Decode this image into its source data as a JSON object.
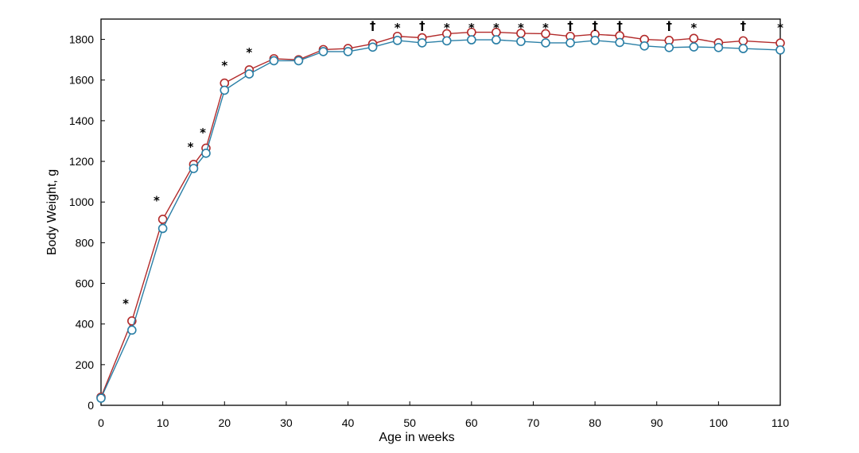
{
  "chart_data": {
    "type": "line",
    "title": "",
    "xlabel": "Age in weeks",
    "ylabel": "Body Weight, g",
    "xlim": [
      0,
      110
    ],
    "ylim": [
      0,
      1900
    ],
    "x_ticks": [
      0,
      10,
      20,
      30,
      40,
      50,
      60,
      70,
      80,
      90,
      100,
      110
    ],
    "y_ticks": [
      0,
      200,
      400,
      600,
      800,
      1000,
      1200,
      1400,
      1600,
      1800
    ],
    "grid": false,
    "x": [
      0,
      5,
      10,
      15,
      17,
      20,
      24,
      28,
      32,
      36,
      40,
      44,
      48,
      52,
      56,
      60,
      64,
      68,
      72,
      76,
      80,
      84,
      88,
      92,
      96,
      100,
      104,
      110
    ],
    "series": [
      {
        "color": "#b22a2a",
        "values": [
          40,
          415,
          915,
          1185,
          1265,
          1585,
          1650,
          1705,
          1700,
          1750,
          1755,
          1778,
          1815,
          1808,
          1828,
          1835,
          1835,
          1830,
          1828,
          1815,
          1825,
          1818,
          1800,
          1795,
          1805,
          1783,
          1793,
          1782
        ]
      },
      {
        "color": "#2a7fa6",
        "values": [
          35,
          370,
          870,
          1165,
          1240,
          1550,
          1630,
          1695,
          1695,
          1740,
          1740,
          1762,
          1795,
          1783,
          1793,
          1798,
          1798,
          1790,
          1783,
          1783,
          1795,
          1785,
          1768,
          1760,
          1763,
          1760,
          1755,
          1748
        ]
      }
    ],
    "annotations": [
      {
        "x": 4,
        "y": 505,
        "text": "*"
      },
      {
        "x": 9,
        "y": 1010,
        "text": "*"
      },
      {
        "x": 14.5,
        "y": 1275,
        "text": "*"
      },
      {
        "x": 16.5,
        "y": 1345,
        "text": "*"
      },
      {
        "x": 20,
        "y": 1675,
        "text": "*"
      },
      {
        "x": 24,
        "y": 1740,
        "text": "*"
      },
      {
        "x": 44,
        "y": 1870,
        "text": "†"
      },
      {
        "x": 48,
        "y": 1860,
        "text": "*"
      },
      {
        "x": 52,
        "y": 1870,
        "text": "†"
      },
      {
        "x": 56,
        "y": 1860,
        "text": "*"
      },
      {
        "x": 60,
        "y": 1860,
        "text": "*"
      },
      {
        "x": 64,
        "y": 1860,
        "text": "*"
      },
      {
        "x": 68,
        "y": 1860,
        "text": "*"
      },
      {
        "x": 72,
        "y": 1860,
        "text": "*"
      },
      {
        "x": 76,
        "y": 1870,
        "text": "†"
      },
      {
        "x": 80,
        "y": 1870,
        "text": "†"
      },
      {
        "x": 84,
        "y": 1870,
        "text": "†"
      },
      {
        "x": 92,
        "y": 1870,
        "text": "†"
      },
      {
        "x": 96,
        "y": 1860,
        "text": "*"
      },
      {
        "x": 104,
        "y": 1870,
        "text": "†"
      },
      {
        "x": 110,
        "y": 1860,
        "text": "*"
      }
    ]
  }
}
